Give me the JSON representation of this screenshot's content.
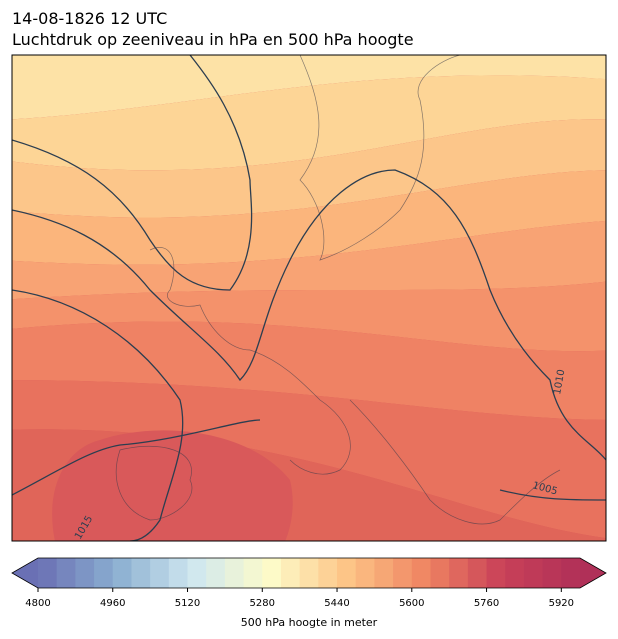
{
  "header": {
    "date": "14-08-1826 12 UTC",
    "title": "Luchtdruk op zeeniveau in hPa en 500 hPa hoogte"
  },
  "map": {
    "contour_labels": [
      "1010",
      "1005",
      "1015"
    ]
  },
  "colorbar": {
    "label": "500 hPa hoogte in meter",
    "colormap": "RdYlBu_r",
    "xlim": [
      4800,
      5960
    ],
    "step": 40,
    "xticks": [
      4800,
      4960,
      5120,
      5280,
      5440,
      5600,
      5760,
      5920
    ],
    "extend": "both"
  }
}
